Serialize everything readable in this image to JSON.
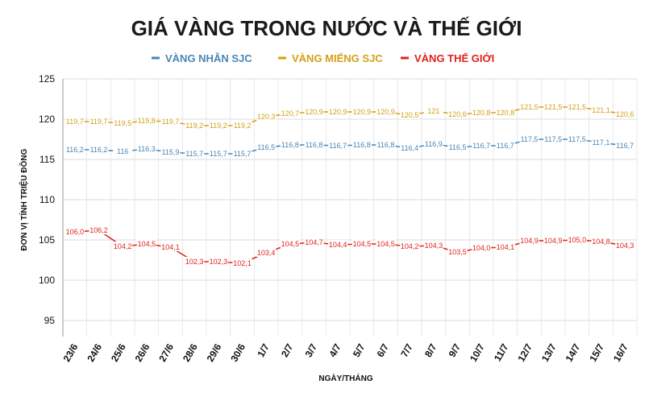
{
  "chart_data": {
    "type": "line",
    "title": "GIÁ VÀNG TRONG NƯỚC VÀ THẾ GIỚI",
    "xlabel": "NGÀY/THÁNG",
    "ylabel": "ĐƠN VỊ TÍNH TRIỆU ĐỒNG",
    "ylim": [
      93,
      125
    ],
    "yticks": [
      "95",
      "100",
      "105",
      "110",
      "115",
      "120",
      "125"
    ],
    "grid": true,
    "legend_position": "top-center",
    "categories": [
      "23/6",
      "24/6",
      "25/6",
      "26/6",
      "27/6",
      "28/6",
      "29/6",
      "30/6",
      "1/7",
      "2/7",
      "3/7",
      "4/7",
      "5/7",
      "6/7",
      "7/7",
      "8/7",
      "9/7",
      "10/7",
      "11/7",
      "12/7",
      "13/7",
      "14/7",
      "15/7",
      "16/7"
    ],
    "series": [
      {
        "name": "VÀNG NHẪN SJC",
        "color": "#4a86b4",
        "values": [
          116.2,
          116.2,
          116.0,
          116.3,
          115.9,
          115.7,
          115.7,
          115.7,
          116.5,
          116.8,
          116.8,
          116.7,
          116.8,
          116.8,
          116.4,
          116.9,
          116.5,
          116.7,
          116.7,
          117.5,
          117.5,
          117.5,
          117.1,
          116.7
        ],
        "labels": [
          "116,2",
          "116,2",
          "116",
          "116,3",
          "115,9",
          "115,7",
          "115,7",
          "115,7",
          "116,5",
          "116,8",
          "116,8",
          "116,7",
          "116,8",
          "116,8",
          "116,4",
          "116,9",
          "116,5",
          "116,7",
          "116,7",
          "117,5",
          "117,5",
          "117,5",
          "117,1",
          "116,7"
        ]
      },
      {
        "name": "VÀNG MIẾNG SJC",
        "color": "#d4a017",
        "values": [
          119.7,
          119.7,
          119.5,
          119.8,
          119.7,
          119.2,
          119.2,
          119.2,
          120.3,
          120.7,
          120.9,
          120.9,
          120.9,
          120.9,
          120.5,
          121.0,
          120.6,
          120.8,
          120.8,
          121.5,
          121.5,
          121.5,
          121.1,
          120.6
        ],
        "labels": [
          "119,7",
          "119,7",
          "119,5",
          "119,8",
          "119,7",
          "119,2",
          "119,2",
          "119,2",
          "120,3",
          "120,7",
          "120,9",
          "120,9",
          "120,9",
          "120,9",
          "120,5",
          "121",
          "120,6",
          "120,8",
          "120,8",
          "121,5",
          "121,5",
          "121,5",
          "121,1",
          "120,6"
        ]
      },
      {
        "name": "VÀNG THẾ GIỚI",
        "color": "#e0231b",
        "values": [
          106.0,
          106.2,
          104.2,
          104.5,
          104.1,
          102.3,
          102.3,
          102.1,
          103.4,
          104.5,
          104.7,
          104.4,
          104.5,
          104.5,
          104.2,
          104.3,
          103.5,
          104.0,
          104.1,
          104.9,
          104.9,
          105.0,
          104.8,
          104.3
        ],
        "labels": [
          "106,0",
          "106,2",
          "104,2",
          "104,5",
          "104,1",
          "102,3",
          "102,3",
          "102,1",
          "103,4",
          "104,5",
          "104,7",
          "104,4",
          "104,5",
          "104,5",
          "104,2",
          "104,3",
          "103,5",
          "104,0",
          "104,1",
          "104,9",
          "104,9",
          "105,0",
          "104,8",
          "104,3"
        ]
      }
    ]
  }
}
